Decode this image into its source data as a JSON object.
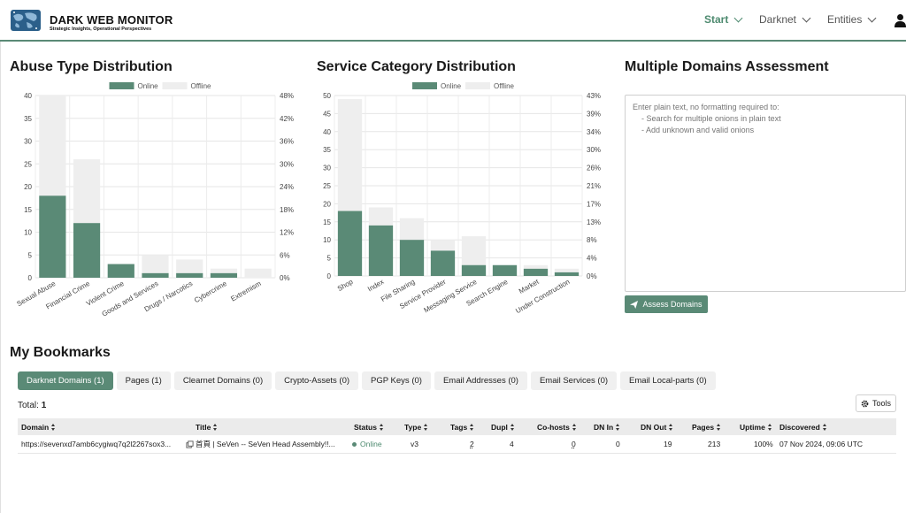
{
  "header": {
    "brand_title": "DARK WEB MONITOR",
    "brand_subtitle": "Strategic Insights, Operational Perspectives",
    "nav": [
      {
        "label": "Start",
        "active": true
      },
      {
        "label": "Darknet",
        "active": false
      },
      {
        "label": "Entities",
        "active": false
      }
    ],
    "user_icon": "user-icon",
    "accent_color": "#5a8a76"
  },
  "charts": {
    "abuse": {
      "title": "Abuse Type Distribution",
      "legend": {
        "online": "Online",
        "offline": "Offline"
      }
    },
    "service": {
      "title": "Service Category Distribution",
      "legend": {
        "online": "Online",
        "offline": "Offline"
      }
    }
  },
  "chart_data": [
    {
      "type": "bar",
      "stacked": true,
      "title": "Abuse Type Distribution",
      "categories": [
        "Sexual Abuse",
        "Financial Crime",
        "Violent Crime",
        "Goods and Services",
        "Drugs / Narcotics",
        "Cybercrime",
        "Extremism"
      ],
      "series": [
        {
          "name": "Online",
          "color": "#5a8a76",
          "values": [
            18,
            12,
            3,
            1,
            1,
            1,
            0
          ]
        },
        {
          "name": "Offline",
          "color": "#eeeeee",
          "values": [
            22,
            14,
            0,
            4,
            3,
            1,
            2
          ]
        }
      ],
      "ylim": [
        0,
        40
      ],
      "yticks": [
        0,
        5,
        10,
        15,
        20,
        25,
        30,
        35,
        40
      ],
      "y2ticks": [
        "0%",
        "6%",
        "12%",
        "18%",
        "24%",
        "30%",
        "36%",
        "42%",
        "48%"
      ],
      "legend_position": "top-center",
      "grid": true
    },
    {
      "type": "bar",
      "stacked": true,
      "title": "Service Category Distribution",
      "categories": [
        "Shop",
        "Index",
        "File Sharing",
        "Service Provider",
        "Messaging Service",
        "Search Engine",
        "Market",
        "Under Construction"
      ],
      "series": [
        {
          "name": "Online",
          "color": "#5a8a76",
          "values": [
            18,
            14,
            10,
            7,
            3,
            3,
            2,
            1
          ]
        },
        {
          "name": "Offline",
          "color": "#eeeeee",
          "values": [
            31,
            5,
            6,
            3,
            8,
            0,
            1,
            1
          ]
        }
      ],
      "ylim": [
        0,
        50
      ],
      "yticks": [
        0,
        5,
        10,
        15,
        20,
        25,
        30,
        35,
        40,
        45,
        50
      ],
      "y2ticks": [
        "0%",
        "4%",
        "8%",
        "13%",
        "17%",
        "21%",
        "26%",
        "30%",
        "34%",
        "39%",
        "43%"
      ],
      "legend_position": "top-center",
      "grid": true
    }
  ],
  "assessment": {
    "title": "Multiple Domains Assessment",
    "placeholder": "Enter plain text, no formatting required to:\n    - Search for multiple onions in plain text\n    - Add unknown and valid onions",
    "button_label": "Assess Domains"
  },
  "bookmarks": {
    "title": "My Bookmarks",
    "tabs": [
      {
        "label": "Darknet Domains (1)",
        "active": true
      },
      {
        "label": "Pages (1)",
        "active": false
      },
      {
        "label": "Clearnet Domains (0)",
        "active": false
      },
      {
        "label": "Crypto-Assets (0)",
        "active": false
      },
      {
        "label": "PGP Keys (0)",
        "active": false
      },
      {
        "label": "Email Addresses (0)",
        "active": false
      },
      {
        "label": "Email Services (0)",
        "active": false
      },
      {
        "label": "Email Local-parts (0)",
        "active": false
      }
    ],
    "total_label": "Total:",
    "total_value": "1",
    "tools_label": "Tools",
    "columns": [
      "Domain",
      "Title",
      "Status",
      "Type",
      "Tags",
      "Dupl",
      "Co-hosts",
      "DN In",
      "DN Out",
      "Pages",
      "Uptime",
      "Discovered"
    ],
    "rows": [
      {
        "domain": "https://sevenxd7amb6cygiwq7q2l2267sox3...",
        "title": "首頁 | SeVen -- SeVen Head Assembly!!...",
        "status": "Online",
        "type": "v3",
        "tags": "2",
        "dupl": "4",
        "cohosts": "0",
        "dn_in": "0",
        "dn_out": "19",
        "pages": "213",
        "uptime": "100%",
        "discovered": "07 Nov 2024, 09:06 UTC"
      }
    ]
  }
}
